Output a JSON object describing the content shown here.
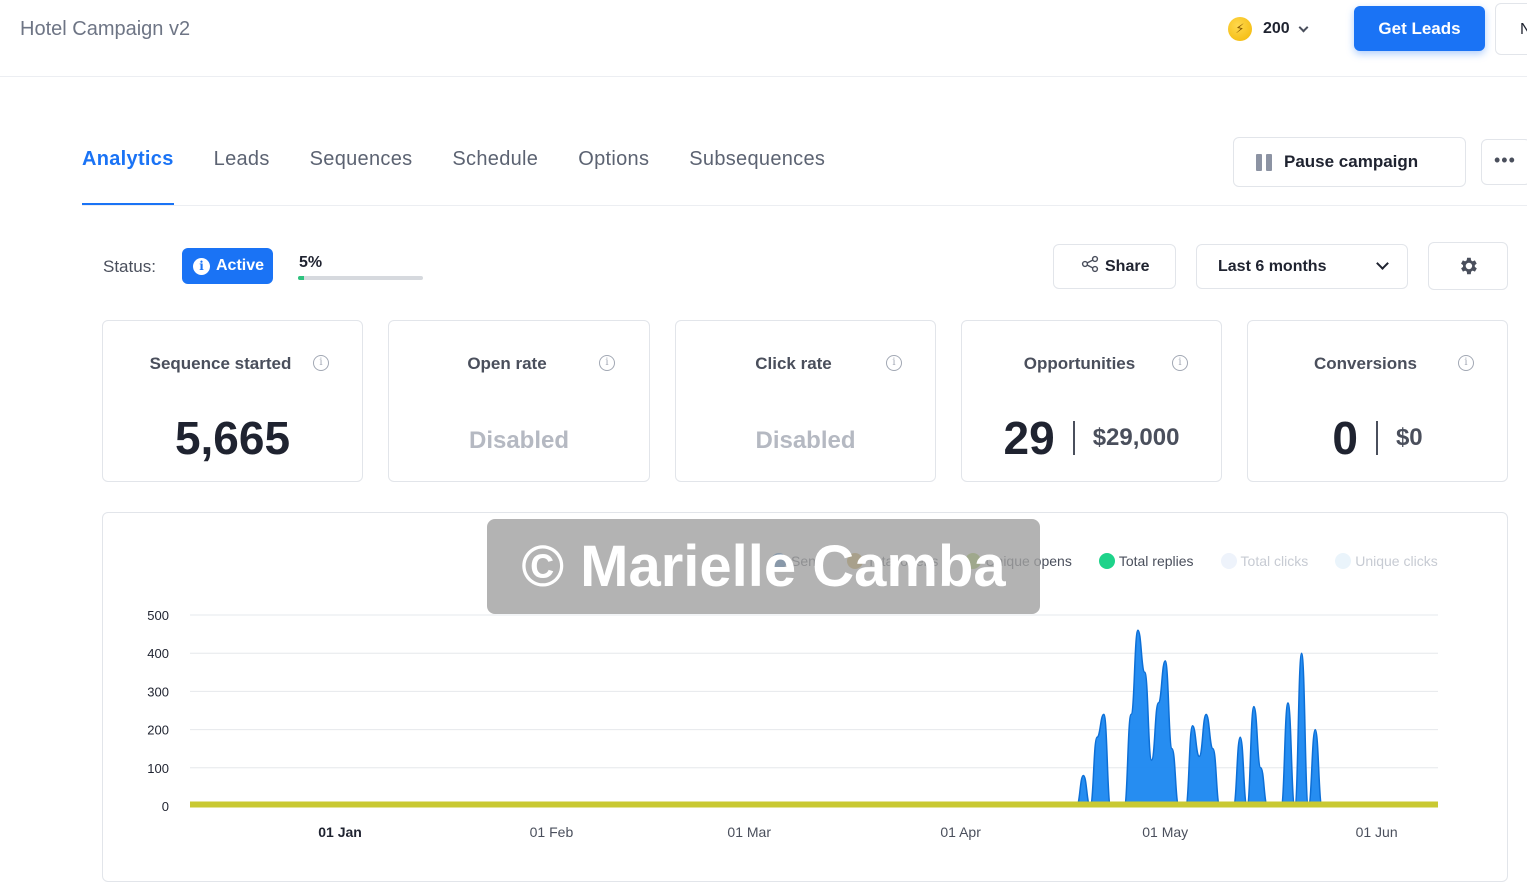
{
  "header": {
    "title": "Hotel Campaign v2",
    "credits": "200",
    "get_leads_label": "Get Leads",
    "user_initial": "N"
  },
  "tabs": [
    {
      "label": "Analytics",
      "active": true
    },
    {
      "label": "Leads"
    },
    {
      "label": "Sequences"
    },
    {
      "label": "Schedule"
    },
    {
      "label": "Options"
    },
    {
      "label": "Subsequences"
    }
  ],
  "actions": {
    "pause_label": "Pause campaign",
    "share_label": "Share",
    "range_label": "Last 6 months"
  },
  "status": {
    "label": "Status:",
    "value": "Active",
    "progress_text": "5%",
    "progress": 0.05
  },
  "cards": {
    "sequence_started": {
      "title": "Sequence started",
      "value": "5,665"
    },
    "open_rate": {
      "title": "Open rate",
      "value": "Disabled"
    },
    "click_rate": {
      "title": "Click rate",
      "value": "Disabled"
    },
    "opportunities": {
      "title": "Opportunities",
      "count": "29",
      "amount": "$29,000"
    },
    "conversions": {
      "title": "Conversions",
      "count": "0",
      "amount": "$0"
    }
  },
  "watermark": "© Marielle Camba",
  "chart_data": {
    "type": "area",
    "legend": [
      {
        "name": "Sent",
        "color": "#2f7fd0",
        "visible": true
      },
      {
        "name": "Total opens",
        "color": "#c9a23a",
        "visible": true
      },
      {
        "name": "Unique opens",
        "color": "#9bc53d",
        "visible": true
      },
      {
        "name": "Total replies",
        "color": "#1ed38a",
        "visible": true
      },
      {
        "name": "Total clicks",
        "color": "#eef3fb",
        "visible": false
      },
      {
        "name": "Unique clicks",
        "color": "#eaf4fb",
        "visible": false
      }
    ],
    "x_ticks": [
      "01 Jan",
      "01 Feb",
      "01 Mar",
      "01 Apr",
      "01 May",
      "01 Jun"
    ],
    "y_ticks": [
      0,
      100,
      200,
      300,
      400,
      500
    ],
    "ylim": [
      0,
      500
    ],
    "xlim": [
      "2023-12-10",
      "2024-06-10"
    ],
    "series": [
      {
        "name": "Sent",
        "color": "#1a87f0",
        "points": [
          [
            "2024-04-18",
            0
          ],
          [
            "2024-04-19",
            80
          ],
          [
            "2024-04-20",
            0
          ],
          [
            "2024-04-21",
            180
          ],
          [
            "2024-04-22",
            240
          ],
          [
            "2024-04-23",
            0
          ],
          [
            "2024-04-25",
            0
          ],
          [
            "2024-04-26",
            240
          ],
          [
            "2024-04-27",
            460
          ],
          [
            "2024-04-28",
            350
          ],
          [
            "2024-04-29",
            120
          ],
          [
            "2024-04-30",
            270
          ],
          [
            "2024-05-01",
            380
          ],
          [
            "2024-05-02",
            150
          ],
          [
            "2024-05-03",
            0
          ],
          [
            "2024-05-04",
            0
          ],
          [
            "2024-05-05",
            210
          ],
          [
            "2024-05-06",
            130
          ],
          [
            "2024-05-07",
            240
          ],
          [
            "2024-05-08",
            150
          ],
          [
            "2024-05-09",
            0
          ],
          [
            "2024-05-11",
            0
          ],
          [
            "2024-05-12",
            180
          ],
          [
            "2024-05-13",
            0
          ],
          [
            "2024-05-14",
            260
          ],
          [
            "2024-05-15",
            100
          ],
          [
            "2024-05-16",
            0
          ],
          [
            "2024-05-18",
            0
          ],
          [
            "2024-05-19",
            270
          ],
          [
            "2024-05-20",
            0
          ],
          [
            "2024-05-21",
            400
          ],
          [
            "2024-05-22",
            0
          ],
          [
            "2024-05-23",
            200
          ],
          [
            "2024-05-24",
            0
          ]
        ]
      },
      {
        "name": "Total replies",
        "color": "#1ed38a",
        "points": [
          [
            "2024-04-18",
            0
          ],
          [
            "2024-04-27",
            10
          ],
          [
            "2024-05-05",
            6
          ],
          [
            "2024-05-21",
            8
          ],
          [
            "2024-06-02",
            5
          ],
          [
            "2024-06-05",
            0
          ]
        ]
      },
      {
        "name": "Total opens",
        "color": "#c9c932",
        "points": [
          [
            "2023-12-10",
            6
          ],
          [
            "2024-06-10",
            6
          ]
        ]
      }
    ]
  }
}
